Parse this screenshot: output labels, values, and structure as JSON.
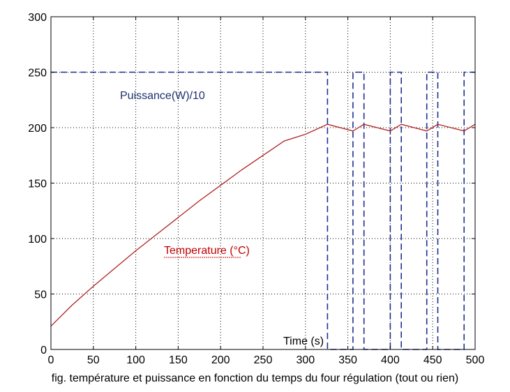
{
  "chart_data": {
    "type": "line",
    "xlabel": "Time (s)",
    "xlim": [
      0,
      500
    ],
    "ylim": [
      0,
      300
    ],
    "xticks": [
      0,
      50,
      100,
      150,
      200,
      250,
      300,
      350,
      400,
      450,
      500
    ],
    "yticks": [
      0,
      50,
      100,
      150,
      200,
      250,
      300
    ],
    "grid": true,
    "series": [
      {
        "name": "Puissance(W)/10",
        "color": "#1f2f8f",
        "style": "dashed",
        "x": [
          0,
          326,
          326,
          356,
          356,
          369,
          369,
          400,
          400,
          413,
          413,
          443,
          443,
          456,
          456,
          487,
          487,
          500
        ],
        "y": [
          250,
          250,
          0,
          0,
          250,
          250,
          0,
          0,
          250,
          250,
          0,
          0,
          250,
          250,
          0,
          0,
          250,
          250
        ]
      },
      {
        "name": "Temperature (°C)",
        "color": "#b22222",
        "style": "solid",
        "x": [
          0,
          25,
          50,
          75,
          100,
          125,
          150,
          175,
          200,
          225,
          250,
          275,
          300,
          326,
          356,
          369,
          400,
          413,
          443,
          456,
          487,
          500
        ],
        "y": [
          21,
          40,
          57,
          73,
          89,
          104,
          119,
          134,
          148,
          162,
          175,
          188,
          194,
          203,
          197,
          203,
          197,
          203,
          197,
          203,
          197,
          203
        ]
      }
    ]
  },
  "annotations": {
    "power_label": "Puissance(W)/10",
    "temp_label": "Temperature (°C)",
    "time_label": "Time (s)"
  },
  "caption": "fig. température et puissance en fonction du temps du four régulation (tout ou rien)"
}
